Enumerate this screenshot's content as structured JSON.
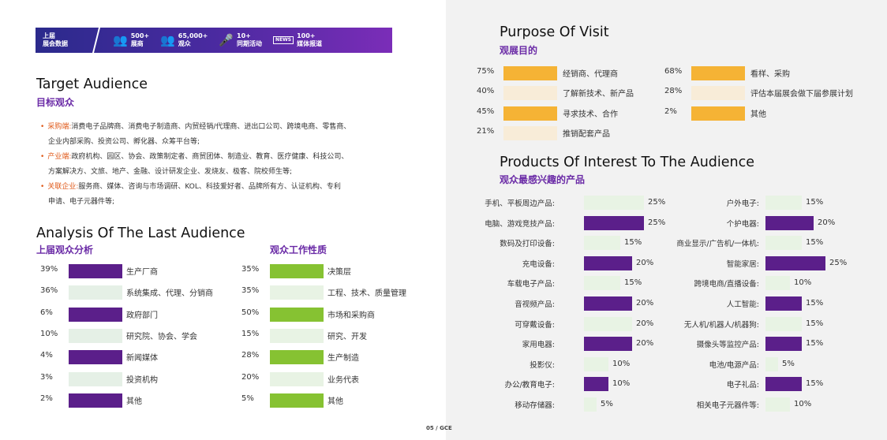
{
  "colors": {
    "purple": "#5b1f8a",
    "purple_light": "#e5f0e6",
    "green": "#86c232",
    "green_light": "#e8f3e4",
    "orange": "#f5b335",
    "orange_light": "#f8ecd8",
    "heading_purple": "#6a2aa6",
    "bullet_orange": "#e05a1a"
  },
  "banner": {
    "first": "上届\n展会数据",
    "stats": [
      {
        "icon": "people-icon",
        "glyph": "👥",
        "value": "500+",
        "label": "展商"
      },
      {
        "icon": "crowd-icon",
        "glyph": "👥",
        "value": "65,000+",
        "label": "观众"
      },
      {
        "icon": "microphone-icon",
        "glyph": "🎤",
        "value": "10+",
        "label": "同期活动"
      },
      {
        "icon": "news-icon",
        "glyph": "NEWS",
        "value": "100+",
        "label": "媒体报道"
      }
    ]
  },
  "target": {
    "title": "Target Audience",
    "subtitle": "目标观众",
    "bullets": [
      {
        "key": "采购端:",
        "text": "消费电子品牌商、消费电子制造商、内贸经销/代理商、进出口公司、跨境电商、零售商、",
        "cont": "企业内部采购、投资公司、孵化器、众筹平台等;"
      },
      {
        "key": "产业端:",
        "text": "政府机构、园区、协会、政策制定者、商贸团体、制造业、教育、医疗健康、科技公司、",
        "cont": "方案解决方、文旅、地产、金融、设计研发企业、发烧友、极客、院校师生等;"
      },
      {
        "key": "关联企业:",
        "text": "服务商、媒体、咨询与市场调研、KOL、科技爱好者、品牌所有方、认证机构、专利",
        "cont": "申请、电子元器件等;"
      }
    ]
  },
  "analysis": {
    "title": "Analysis Of The Last Audience",
    "sub_left": "上届观众分析",
    "sub_right": "观众工作性质",
    "left": [
      {
        "pct": "39%",
        "label": "生产厂商",
        "dark": true
      },
      {
        "pct": "36%",
        "label": "系统集成、代理、分销商",
        "dark": false
      },
      {
        "pct": "6%",
        "label": "政府部门",
        "dark": true
      },
      {
        "pct": "10%",
        "label": "研究院、协会、学会",
        "dark": false
      },
      {
        "pct": "4%",
        "label": "新闻媒体",
        "dark": true
      },
      {
        "pct": "3%",
        "label": "投资机构",
        "dark": false
      },
      {
        "pct": "2%",
        "label": "其他",
        "dark": true
      }
    ],
    "right": [
      {
        "pct": "35%",
        "label": "决策层",
        "dark": true
      },
      {
        "pct": "35%",
        "label": "工程、技术、质量管理",
        "dark": false
      },
      {
        "pct": "50%",
        "label": "市场和采购商",
        "dark": true
      },
      {
        "pct": "15%",
        "label": "研究、开发",
        "dark": false
      },
      {
        "pct": "28%",
        "label": "生产制造",
        "dark": true
      },
      {
        "pct": "20%",
        "label": "业务代表",
        "dark": false
      },
      {
        "pct": "5%",
        "label": "其他",
        "dark": true
      }
    ]
  },
  "purpose": {
    "title": "Purpose Of Visit",
    "subtitle": "观展目的",
    "left": [
      {
        "pct": "75%",
        "label": "经销商、代理商",
        "dark": true
      },
      {
        "pct": "40%",
        "label": "了解新技术、新产品",
        "dark": false
      },
      {
        "pct": "45%",
        "label": "寻求技术、合作",
        "dark": true
      },
      {
        "pct": "21%",
        "label": "推销配套产品",
        "dark": false
      }
    ],
    "right": [
      {
        "pct": "68%",
        "label": "看样、采购",
        "dark": true
      },
      {
        "pct": "28%",
        "label": "评估本届展会做下届参展计划",
        "dark": false
      },
      {
        "pct": "2%",
        "label": "其他",
        "dark": true
      }
    ]
  },
  "products": {
    "title": "Products Of Interest To The Audience",
    "subtitle": "观众最感兴趣的产品",
    "left": [
      {
        "label": "手机、平板周边产品:",
        "pct": "25%",
        "value": 25,
        "dark": false
      },
      {
        "label": "电脑、游戏竞技产品:",
        "pct": "25%",
        "value": 25,
        "dark": true
      },
      {
        "label": "数码及打印设备:",
        "pct": "15%",
        "value": 15,
        "dark": false
      },
      {
        "label": "充电设备:",
        "pct": "20%",
        "value": 20,
        "dark": true
      },
      {
        "label": "车载电子产品:",
        "pct": "15%",
        "value": 15,
        "dark": false
      },
      {
        "label": "音视频产品:",
        "pct": "20%",
        "value": 20,
        "dark": true
      },
      {
        "label": "可穿戴设备:",
        "pct": "20%",
        "value": 20,
        "dark": false
      },
      {
        "label": "家用电器:",
        "pct": "20%",
        "value": 20,
        "dark": true
      },
      {
        "label": "投影仪:",
        "pct": "10%",
        "value": 10,
        "dark": false
      },
      {
        "label": "办公/教育电子:",
        "pct": "10%",
        "value": 10,
        "dark": true
      },
      {
        "label": "移动存储器:",
        "pct": "5%",
        "value": 5,
        "dark": false
      }
    ],
    "right": [
      {
        "label": "户外电子:",
        "pct": "15%",
        "value": 15,
        "dark": false
      },
      {
        "label": "个护电器:",
        "pct": "20%",
        "value": 20,
        "dark": true
      },
      {
        "label": "商业显示/广告机/一体机:",
        "pct": "15%",
        "value": 15,
        "dark": false
      },
      {
        "label": "智能家居:",
        "pct": "25%",
        "value": 25,
        "dark": true
      },
      {
        "label": "跨境电商/直播设备:",
        "pct": "10%",
        "value": 10,
        "dark": false
      },
      {
        "label": "人工智能:",
        "pct": "15%",
        "value": 15,
        "dark": true
      },
      {
        "label": "无人机/机器人/机器狗:",
        "pct": "15%",
        "value": 15,
        "dark": false
      },
      {
        "label": "摄像头等监控产品:",
        "pct": "15%",
        "value": 15,
        "dark": true
      },
      {
        "label": "电池/电源产品:",
        "pct": "5%",
        "value": 5,
        "dark": false
      },
      {
        "label": "电子礼品:",
        "pct": "15%",
        "value": 15,
        "dark": true
      },
      {
        "label": "相关电子元器件等:",
        "pct": "10%",
        "value": 10,
        "dark": false
      }
    ]
  },
  "footer": "05 / GCE"
}
